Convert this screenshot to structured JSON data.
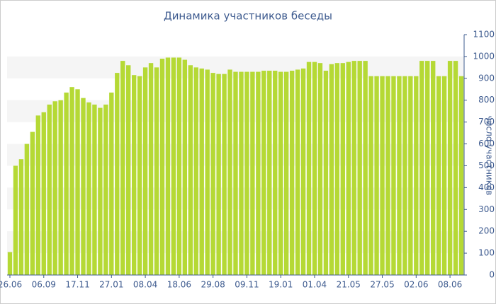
{
  "chart_data": {
    "type": "bar",
    "title": "Динамика участников беседы",
    "y_label": "число участников",
    "categories": [
      "26.06",
      null,
      null,
      null,
      null,
      null,
      "06.09",
      null,
      null,
      null,
      null,
      null,
      "17.11",
      null,
      null,
      null,
      null,
      null,
      "27.01",
      null,
      null,
      null,
      null,
      null,
      "08.04",
      null,
      null,
      null,
      null,
      null,
      "18.06",
      null,
      null,
      null,
      null,
      null,
      "29.08",
      null,
      null,
      null,
      null,
      null,
      "09.11",
      null,
      null,
      null,
      null,
      null,
      "19.01",
      null,
      null,
      null,
      null,
      null,
      "01.04",
      null,
      null,
      null,
      null,
      null,
      "21.05",
      null,
      null,
      null,
      null,
      null,
      "27.05",
      null,
      null,
      null,
      null,
      null,
      "02.06",
      null,
      null,
      null,
      null,
      null,
      "08.06",
      null,
      null
    ],
    "values": [
      105,
      500,
      530,
      600,
      655,
      730,
      745,
      780,
      795,
      800,
      835,
      860,
      850,
      810,
      790,
      780,
      765,
      780,
      835,
      925,
      980,
      960,
      915,
      910,
      950,
      970,
      950,
      990,
      995,
      995,
      995,
      985,
      960,
      950,
      945,
      940,
      925,
      920,
      920,
      940,
      930,
      930,
      930,
      930,
      930,
      935,
      935,
      935,
      930,
      930,
      935,
      940,
      945,
      975,
      975,
      970,
      935,
      965,
      970,
      970,
      975,
      980,
      980,
      980,
      910,
      910,
      910,
      910,
      910,
      910,
      910,
      910,
      910,
      980,
      980,
      980,
      910,
      910,
      980,
      980,
      910
    ],
    "color": "#b5d935",
    "ylim": [
      0,
      1100
    ],
    "yticks": [
      0,
      100,
      200,
      300,
      400,
      500,
      600,
      700,
      800,
      900,
      1000,
      1100
    ],
    "grid": true
  }
}
